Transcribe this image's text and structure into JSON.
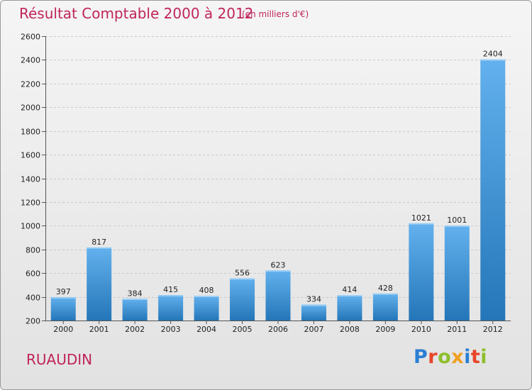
{
  "title": "Résultat Comptable 2000 à 2012",
  "subtitle": "(en milliers d'€)",
  "commune": "RUAUDIN",
  "logo": {
    "text": "Proxiti",
    "colors": [
      "#2b7fd4",
      "#e8462a",
      "#8dbf2a",
      "#f0a020",
      "#2b7fd4",
      "#e8462a",
      "#8dbf2a"
    ]
  },
  "colors": {
    "title": "#c0245c",
    "bar_light": "#63b1ee",
    "bar_dark": "#2476b8"
  },
  "chart_data": {
    "type": "bar",
    "title": "Résultat Comptable 2000 à 2012",
    "subtitle": "(en milliers d'€)",
    "xlabel": "",
    "ylabel": "",
    "categories": [
      "2000",
      "2001",
      "2002",
      "2003",
      "2004",
      "2005",
      "2006",
      "2007",
      "2008",
      "2009",
      "2010",
      "2011",
      "2012"
    ],
    "values": [
      397,
      817,
      384,
      415,
      408,
      556,
      623,
      334,
      414,
      428,
      1021,
      1001,
      2404
    ],
    "ylim": [
      200,
      2600
    ],
    "yticks": [
      200,
      400,
      600,
      800,
      1000,
      1200,
      1400,
      1600,
      1800,
      2000,
      2200,
      2400,
      2600
    ],
    "grid": true
  }
}
